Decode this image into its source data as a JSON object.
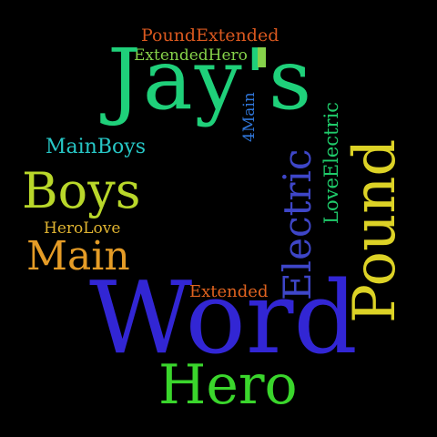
{
  "word_cloud": {
    "background": "#000000",
    "words": {
      "pound_extended": {
        "text": "PoundExtended",
        "color": "#d9581f"
      },
      "extended_hero": {
        "text": "ExtendedHero",
        "color": "#86d24a"
      },
      "jays": {
        "text": "Jay's",
        "color": "#1fd07a"
      },
      "main_boys": {
        "text": "MainBoys",
        "color": "#27c7c6"
      },
      "boys": {
        "text": "Boys",
        "color": "#b9d72a"
      },
      "hero_love": {
        "text": "HeroLove",
        "color": "#e0b431"
      },
      "main": {
        "text": "Main",
        "color": "#e59c27"
      },
      "extended": {
        "text": "Extended",
        "color": "#e0631f"
      },
      "word": {
        "text": "Word",
        "color": "#3226d4"
      },
      "hero": {
        "text": "Hero",
        "color": "#3ad62c"
      },
      "four_main": {
        "text": "4Main",
        "color": "#2f76d9"
      },
      "love_electric": {
        "text": "LoveElectric",
        "color": "#1fcb6a"
      },
      "electric": {
        "text": "Electric",
        "color": "#3e46c8"
      },
      "pound": {
        "text": "Pound",
        "color": "#dcd226"
      }
    }
  }
}
